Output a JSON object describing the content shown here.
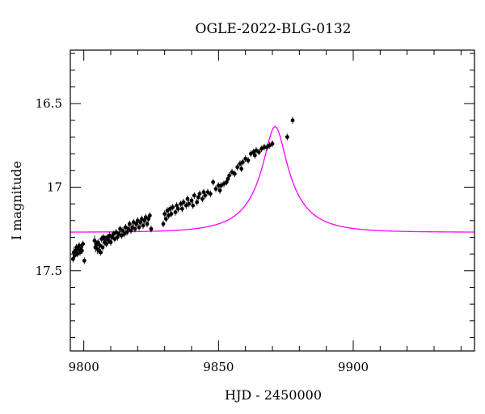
{
  "chart_data": {
    "type": "scatter",
    "title": "OGLE-2022-BLG-0132",
    "xlabel": "HJD - 2450000",
    "ylabel": "I magnitude",
    "xlim": [
      9795,
      9945
    ],
    "ylim": [
      17.98,
      16.18
    ],
    "y_inverted": true,
    "x_major_ticks": [
      9800,
      9850,
      9900
    ],
    "x_tick_labels": [
      "9800",
      "9850",
      "9900"
    ],
    "x_minor_step": 10,
    "y_major_ticks": [
      16.5,
      17,
      17.5
    ],
    "y_tick_labels": [
      "16.5",
      "17",
      "17.5"
    ],
    "y_minor_step": 0.1,
    "grid": false,
    "legend": "none",
    "model": {
      "color": "#ff00ff",
      "t0": 9871,
      "u0": 0.23,
      "tE": 17,
      "baseline_mag": 17.27,
      "blend_fraction": 0.23
    },
    "series": [
      {
        "color": "#000000",
        "points": [
          [
            9796.0,
            17.43,
            0.02
          ],
          [
            9796.3,
            17.39,
            0.03
          ],
          [
            9796.6,
            17.41,
            0.02
          ],
          [
            9797.0,
            17.38,
            0.03
          ],
          [
            9797.3,
            17.36,
            0.02
          ],
          [
            9797.6,
            17.4,
            0.02
          ],
          [
            9798.0,
            17.37,
            0.03
          ],
          [
            9798.3,
            17.35,
            0.02
          ],
          [
            9798.6,
            17.39,
            0.02
          ],
          [
            9799.0,
            17.36,
            0.02
          ],
          [
            9799.3,
            17.38,
            0.02
          ],
          [
            9799.7,
            17.34,
            0.02
          ],
          [
            9800.2,
            17.44,
            0.02
          ],
          [
            9804.0,
            17.32,
            0.03
          ],
          [
            9804.3,
            17.36,
            0.03
          ],
          [
            9804.7,
            17.34,
            0.02
          ],
          [
            9805.0,
            17.37,
            0.03
          ],
          [
            9805.3,
            17.33,
            0.02
          ],
          [
            9805.6,
            17.38,
            0.02
          ],
          [
            9806.0,
            17.35,
            0.02
          ],
          [
            9806.3,
            17.39,
            0.02
          ],
          [
            9806.6,
            17.31,
            0.02
          ],
          [
            9807.0,
            17.36,
            0.02
          ],
          [
            9807.3,
            17.3,
            0.02
          ],
          [
            9807.7,
            17.33,
            0.02
          ],
          [
            9808.0,
            17.31,
            0.02
          ],
          [
            9808.4,
            17.34,
            0.02
          ],
          [
            9808.8,
            17.3,
            0.02
          ],
          [
            9809.2,
            17.32,
            0.02
          ],
          [
            9809.6,
            17.29,
            0.02
          ],
          [
            9810.0,
            17.33,
            0.02
          ],
          [
            9810.5,
            17.3,
            0.02
          ],
          [
            9811.0,
            17.28,
            0.02
          ],
          [
            9811.5,
            17.31,
            0.02
          ],
          [
            9812.0,
            17.27,
            0.02
          ],
          [
            9812.5,
            17.3,
            0.02
          ],
          [
            9813.0,
            17.28,
            0.02
          ],
          [
            9813.5,
            17.25,
            0.02
          ],
          [
            9814.0,
            17.29,
            0.02
          ],
          [
            9814.5,
            17.26,
            0.02
          ],
          [
            9815.0,
            17.28,
            0.02
          ],
          [
            9815.5,
            17.24,
            0.02
          ],
          [
            9816.0,
            17.27,
            0.02
          ],
          [
            9816.5,
            17.25,
            0.02
          ],
          [
            9817.0,
            17.22,
            0.02
          ],
          [
            9817.5,
            17.26,
            0.02
          ],
          [
            9818.0,
            17.24,
            0.02
          ],
          [
            9818.5,
            17.21,
            0.02
          ],
          [
            9819.0,
            17.25,
            0.02
          ],
          [
            9819.5,
            17.22,
            0.02
          ],
          [
            9820.0,
            17.2,
            0.02
          ],
          [
            9820.5,
            17.24,
            0.02
          ],
          [
            9821.0,
            17.21,
            0.02
          ],
          [
            9821.5,
            17.19,
            0.02
          ],
          [
            9822.0,
            17.23,
            0.02
          ],
          [
            9822.5,
            17.2,
            0.02
          ],
          [
            9823.0,
            17.18,
            0.02
          ],
          [
            9823.5,
            17.22,
            0.02
          ],
          [
            9824.0,
            17.19,
            0.02
          ],
          [
            9824.5,
            17.17,
            0.02
          ],
          [
            9825.0,
            17.25,
            0.02
          ],
          [
            9829.5,
            17.22,
            0.02
          ],
          [
            9830.0,
            17.16,
            0.02
          ],
          [
            9830.5,
            17.19,
            0.02
          ],
          [
            9831.0,
            17.14,
            0.02
          ],
          [
            9831.5,
            17.17,
            0.02
          ],
          [
            9832.0,
            17.13,
            0.02
          ],
          [
            9832.5,
            17.16,
            0.02
          ],
          [
            9833.0,
            17.12,
            0.02
          ],
          [
            9834.0,
            17.15,
            0.02
          ],
          [
            9834.5,
            17.11,
            0.02
          ],
          [
            9835.0,
            17.13,
            0.02
          ],
          [
            9836.0,
            17.1,
            0.02
          ],
          [
            9836.5,
            17.13,
            0.02
          ],
          [
            9837.0,
            17.09,
            0.02
          ],
          [
            9838.0,
            17.11,
            0.02
          ],
          [
            9838.5,
            17.07,
            0.02
          ],
          [
            9839.0,
            17.1,
            0.02
          ],
          [
            9840.0,
            17.08,
            0.02
          ],
          [
            9840.5,
            17.11,
            0.02
          ],
          [
            9841.0,
            17.05,
            0.02
          ],
          [
            9842.0,
            17.09,
            0.02
          ],
          [
            9842.5,
            17.06,
            0.02
          ],
          [
            9843.0,
            17.04,
            0.02
          ],
          [
            9844.0,
            17.07,
            0.02
          ],
          [
            9844.5,
            17.03,
            0.02
          ],
          [
            9845.0,
            17.05,
            0.02
          ],
          [
            9846.0,
            17.03,
            0.02
          ],
          [
            9847.0,
            17.04,
            0.02
          ],
          [
            9848.0,
            16.97,
            0.02
          ],
          [
            9849.0,
            17.01,
            0.02
          ],
          [
            9850.0,
            16.99,
            0.02
          ],
          [
            9850.5,
            17.02,
            0.02
          ],
          [
            9851.0,
            16.99,
            0.02
          ],
          [
            9852.0,
            16.98,
            0.02
          ],
          [
            9853.0,
            16.97,
            0.02
          ],
          [
            9853.5,
            16.95,
            0.02
          ],
          [
            9854.0,
            16.93,
            0.02
          ],
          [
            9855.0,
            16.91,
            0.02
          ],
          [
            9856.0,
            16.92,
            0.02
          ],
          [
            9857.0,
            16.88,
            0.02
          ],
          [
            9858.0,
            16.86,
            0.02
          ],
          [
            9858.5,
            16.89,
            0.02
          ],
          [
            9859.0,
            16.85,
            0.02
          ],
          [
            9860.0,
            16.83,
            0.02
          ],
          [
            9861.0,
            16.84,
            0.02
          ],
          [
            9862.0,
            16.8,
            0.02
          ],
          [
            9863.0,
            16.79,
            0.02
          ],
          [
            9863.5,
            16.81,
            0.02
          ],
          [
            9864.0,
            16.78,
            0.02
          ],
          [
            9865.0,
            16.79,
            0.02
          ],
          [
            9866.0,
            16.77,
            0.02
          ],
          [
            9867.0,
            16.76,
            0.02
          ],
          [
            9868.0,
            16.76,
            0.02
          ],
          [
            9869.0,
            16.75,
            0.02
          ],
          [
            9870.0,
            16.74,
            0.02
          ],
          [
            9875.5,
            16.7,
            0.02
          ],
          [
            9877.5,
            16.6,
            0.02
          ]
        ]
      }
    ]
  }
}
